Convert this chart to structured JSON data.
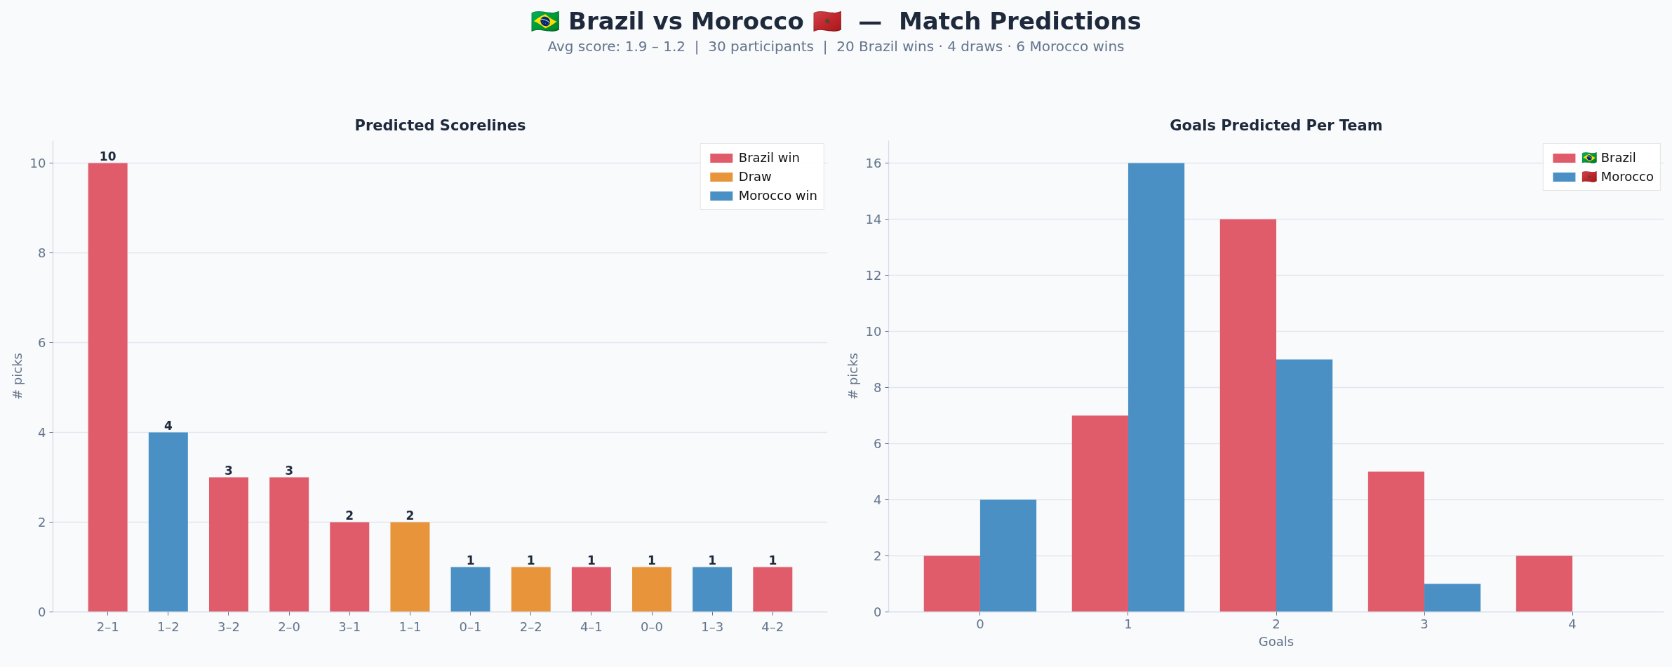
{
  "chart_data": [
    {
      "type": "other",
      "title": "🇧🇷 Brazil vs Morocco 🇲🇦  —  Match Predictions",
      "subtitle": "Avg score: 1.9 – 1.2  |  30 participants  |  20 Brazil wins · 4 draws · 6 Morocco wins"
    },
    {
      "type": "bar",
      "title": "Predicted Scorelines",
      "ylabel": "# picks",
      "categories": [
        "2–1",
        "1–2",
        "3–2",
        "2–0",
        "3–1",
        "1–1",
        "0–1",
        "2–2",
        "4–1",
        "0–0",
        "1–3",
        "4–2"
      ],
      "stacked": true,
      "series": [
        {
          "name": "Brazil win",
          "color": "#e05c6a",
          "values": [
            10,
            null,
            3,
            3,
            2,
            null,
            null,
            null,
            1,
            null,
            null,
            1
          ]
        },
        {
          "name": "Draw",
          "color": "#e8943a",
          "values": [
            null,
            null,
            null,
            null,
            null,
            2,
            null,
            1,
            null,
            1,
            null,
            null
          ]
        },
        {
          "name": "Morocco win",
          "color": "#4a90c4",
          "values": [
            null,
            4,
            null,
            null,
            null,
            null,
            1,
            null,
            null,
            null,
            1,
            null
          ]
        }
      ],
      "ylim": [
        0,
        10.5
      ],
      "yticks": [
        0,
        2,
        4,
        6,
        8,
        10
      ],
      "grid": "y",
      "legend": "top right",
      "data_labels": true
    },
    {
      "type": "bar",
      "title": "Goals Predicted Per Team",
      "xlabel": "Goals",
      "ylabel": "# picks",
      "categories": [
        "0",
        "1",
        "2",
        "3",
        "4"
      ],
      "series": [
        {
          "name": "🇧🇷 Brazil",
          "color": "#e05c6a",
          "values": [
            2,
            7,
            14,
            5,
            2
          ]
        },
        {
          "name": "🇲🇦 Morocco",
          "color": "#4a90c4",
          "values": [
            4,
            16,
            9,
            1,
            0
          ]
        }
      ],
      "ylim": [
        0,
        16.8
      ],
      "yticks": [
        0,
        2,
        4,
        6,
        8,
        10,
        12,
        14,
        16
      ],
      "grid": "y",
      "legend": "top right"
    }
  ]
}
